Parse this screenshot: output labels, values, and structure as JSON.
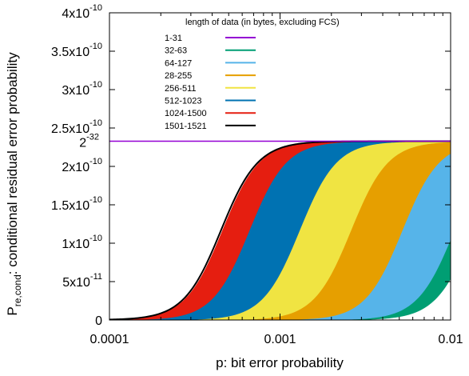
{
  "chart_data": {
    "type": "area",
    "title": "",
    "xlabel": "p: bit error probability",
    "ylabel_main": "P",
    "ylabel_sub": "re,cond",
    "ylabel_rest": ": conditional residual error probability",
    "x_scale": "log",
    "xlim": [
      0.0001,
      0.01
    ],
    "ylim": [
      0,
      4e-10
    ],
    "x_ticks": [
      {
        "value": 0.0001,
        "label": "0.0001"
      },
      {
        "value": 0.001,
        "label": "0.001"
      },
      {
        "value": 0.01,
        "label": "0.01"
      }
    ],
    "y_ticks": [
      {
        "value": 0,
        "label": "0",
        "mantissa": "0",
        "exp": ""
      },
      {
        "value": 5e-11,
        "label": "5x10-11",
        "mantissa": "5x10",
        "exp": "-11"
      },
      {
        "value": 1e-10,
        "label": "1x10-10",
        "mantissa": "1x10",
        "exp": "-10"
      },
      {
        "value": 1.5e-10,
        "label": "1.5x10-10",
        "mantissa": "1.5x10",
        "exp": "-10"
      },
      {
        "value": 2e-10,
        "label": "2x10-10",
        "mantissa": "2x10",
        "exp": "-10"
      },
      {
        "value": 2.5e-10,
        "label": "2.5x10-10",
        "mantissa": "2.5x10",
        "exp": "-10"
      },
      {
        "value": 3e-10,
        "label": "3x10-10",
        "mantissa": "3x10",
        "exp": "-10"
      },
      {
        "value": 3.5e-10,
        "label": "3.5x10-10",
        "mantissa": "3.5x10",
        "exp": "-10"
      },
      {
        "value": 4e-10,
        "label": "4x10-10",
        "mantissa": "4x10",
        "exp": "-10"
      }
    ],
    "special_tick": {
      "value": 2.3283e-10,
      "base": "2",
      "exp": "-32"
    },
    "grid": false,
    "legend_title": "length of data (in bytes, excluding FCS)",
    "legend_position": "top-center",
    "series": [
      {
        "name": "1-31",
        "color": "#9400d3",
        "kind": "line",
        "value": 2.3283e-10
      },
      {
        "name": "32-63",
        "color": "#009e73",
        "kind": "band",
        "p_mid": [
          0.0105,
          0.0135
        ]
      },
      {
        "name": "64-127",
        "color": "#56b4e9",
        "kind": "band",
        "p_mid": [
          0.0052,
          0.0105
        ]
      },
      {
        "name": "28-255",
        "color": "#e69f00",
        "kind": "band",
        "p_mid": [
          0.0026,
          0.0052
        ]
      },
      {
        "name": "256-511",
        "color": "#f0e442",
        "kind": "band",
        "p_mid": [
          0.0013,
          0.0026
        ]
      },
      {
        "name": "512-1023",
        "color": "#0072b2",
        "kind": "band",
        "p_mid": [
          0.00066,
          0.0013
        ]
      },
      {
        "name": "1024-1500",
        "color": "#e51e10",
        "kind": "band",
        "p_mid": [
          0.00046,
          0.00066
        ]
      },
      {
        "name": "1501-1521",
        "color": "#000000",
        "kind": "curve",
        "p_mid": 0.00045
      }
    ]
  }
}
